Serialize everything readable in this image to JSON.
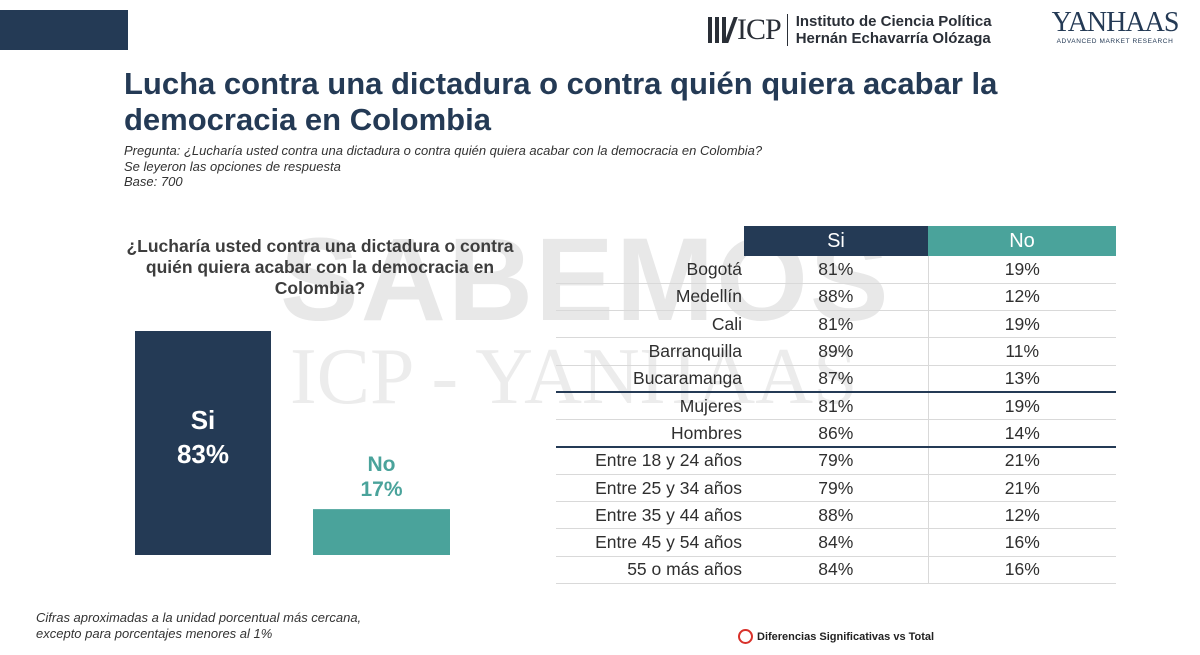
{
  "header": {
    "icp_logo_text": "ICP",
    "institute_line1": "Instituto de Ciencia Política",
    "institute_line2": "Hernán Echavarría Olózaga",
    "yanhaas_logo_text": "YANHAAS",
    "yanhaas_tagline": "ADVANCED MARKET RESEARCH"
  },
  "slide": {
    "title": "Lucha contra una dictadura o contra quién quiera acabar la democracia en Colombia",
    "note_question": "Pregunta: ¿Lucharía usted contra una dictadura o contra quién quiera acabar con la democracia en Colombia?",
    "note_read": "Se leyeron las opciones de respuesta",
    "note_base": "Base: 700",
    "question": "¿Lucharía usted contra una dictadura o contra quién quiera acabar con la democracia en Colombia?",
    "watermark_line1": "SABEMOS",
    "watermark_line2": "ICP - YANHAAS",
    "footnote": "Cifras aproximadas a la unidad porcentual más cercana, excepto para porcentajes menores al 1%",
    "legend_significance": "Diferencias Significativas vs Total"
  },
  "chart_data": [
    {
      "type": "bar",
      "categories": [
        "Si",
        "No"
      ],
      "values": [
        83,
        17
      ],
      "value_labels": [
        "83%",
        "17%"
      ],
      "colors": [
        "#243a55",
        "#4aa39b"
      ],
      "ylim": [
        0,
        83
      ]
    },
    {
      "type": "table",
      "columns": [
        "Si",
        "No"
      ],
      "colors": {
        "Si": "#243a55",
        "No": "#4aa39b"
      },
      "rows": [
        {
          "label": "Bogotá",
          "si": "81%",
          "no": "19%"
        },
        {
          "label": "Medellín",
          "si": "88%",
          "no": "12%"
        },
        {
          "label": "Cali",
          "si": "81%",
          "no": "19%"
        },
        {
          "label": "Barranquilla",
          "si": "89%",
          "no": "11%"
        },
        {
          "label": "Bucaramanga",
          "si": "87%",
          "no": "13%"
        },
        {
          "label": "Mujeres",
          "si": "81%",
          "no": "19%"
        },
        {
          "label": "Hombres",
          "si": "86%",
          "no": "14%"
        },
        {
          "label": "Entre 18 y 24 años",
          "si": "79%",
          "no": "21%"
        },
        {
          "label": "Entre 25 y 34 años",
          "si": "79%",
          "no": "21%"
        },
        {
          "label": "Entre 35 y 44 años",
          "si": "88%",
          "no": "12%"
        },
        {
          "label": "Entre 45 y 54 años",
          "si": "84%",
          "no": "16%"
        },
        {
          "label": "55 o más años",
          "si": "84%",
          "no": "16%"
        }
      ]
    }
  ]
}
